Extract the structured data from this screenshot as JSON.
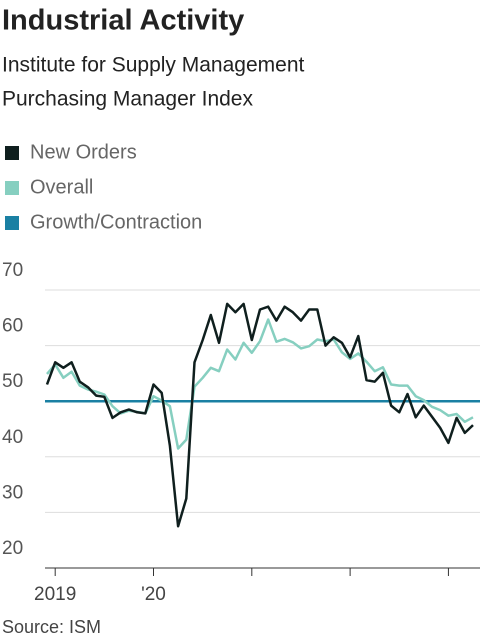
{
  "chart_data": {
    "type": "line",
    "title": "Industrial Activity",
    "subtitle": [
      "Institute for Supply Management",
      "Purchasing Manager Index"
    ],
    "source": "Source: ISM",
    "categories": [
      null,
      "2019",
      null,
      null,
      null,
      null,
      null,
      null,
      null,
      null,
      null,
      null,
      null,
      "'20",
      null,
      null,
      null,
      null,
      null,
      null,
      null,
      null,
      null,
      null,
      null,
      null,
      null,
      null,
      null,
      null,
      null,
      null,
      null,
      null,
      null,
      null,
      null,
      null,
      null,
      null,
      null,
      null,
      null,
      null,
      null,
      null,
      null,
      null,
      null,
      null,
      null,
      null,
      null
    ],
    "series": [
      {
        "name": "New Orders",
        "color": "#0f1f1e",
        "values": [
          53,
          57,
          56,
          57,
          53.5,
          52.5,
          51,
          50.8,
          47,
          48,
          48.5,
          48,
          47.8,
          53,
          51.5,
          42,
          27.5,
          32.5,
          57,
          61,
          65.5,
          60.5,
          67.5,
          66,
          67.5,
          61,
          66.5,
          67,
          64.5,
          67,
          66,
          64.5,
          66.5,
          66.5,
          60,
          61.5,
          60.5,
          57.9,
          61.7,
          53.8,
          53.5,
          55.1,
          49.2,
          48,
          51.3,
          47.1,
          49.2,
          47.2,
          45.2,
          42.5,
          47,
          44.3,
          45.7
        ]
      },
      {
        "name": "Overall",
        "color": "#86cfc0",
        "values": [
          54.9,
          56.6,
          54.2,
          55.3,
          52.8,
          52.1,
          51.7,
          51.2,
          49.1,
          47.8,
          48.3,
          48.1,
          47.8,
          50.9,
          50.1,
          49.1,
          41.5,
          43.1,
          52.6,
          54.2,
          56,
          55.4,
          59.3,
          57.5,
          60.5,
          58.7,
          60.8,
          64.7,
          60.7,
          61.2,
          60.6,
          59.5,
          59.9,
          61.1,
          60.8,
          61.1,
          58.8,
          57.6,
          58.6,
          57.1,
          55.4,
          56.1,
          53,
          52.8,
          52.8,
          50.9,
          50.2,
          49,
          48.4,
          47.4,
          47.7,
          46.3,
          47.1
        ]
      }
    ],
    "reference_line": {
      "name": "Growth/Contraction",
      "value": 50,
      "color": "#1a80a3"
    },
    "ylim": [
      20,
      70
    ],
    "yticks": [
      20,
      30,
      40,
      50,
      60,
      70
    ],
    "grid": true
  }
}
